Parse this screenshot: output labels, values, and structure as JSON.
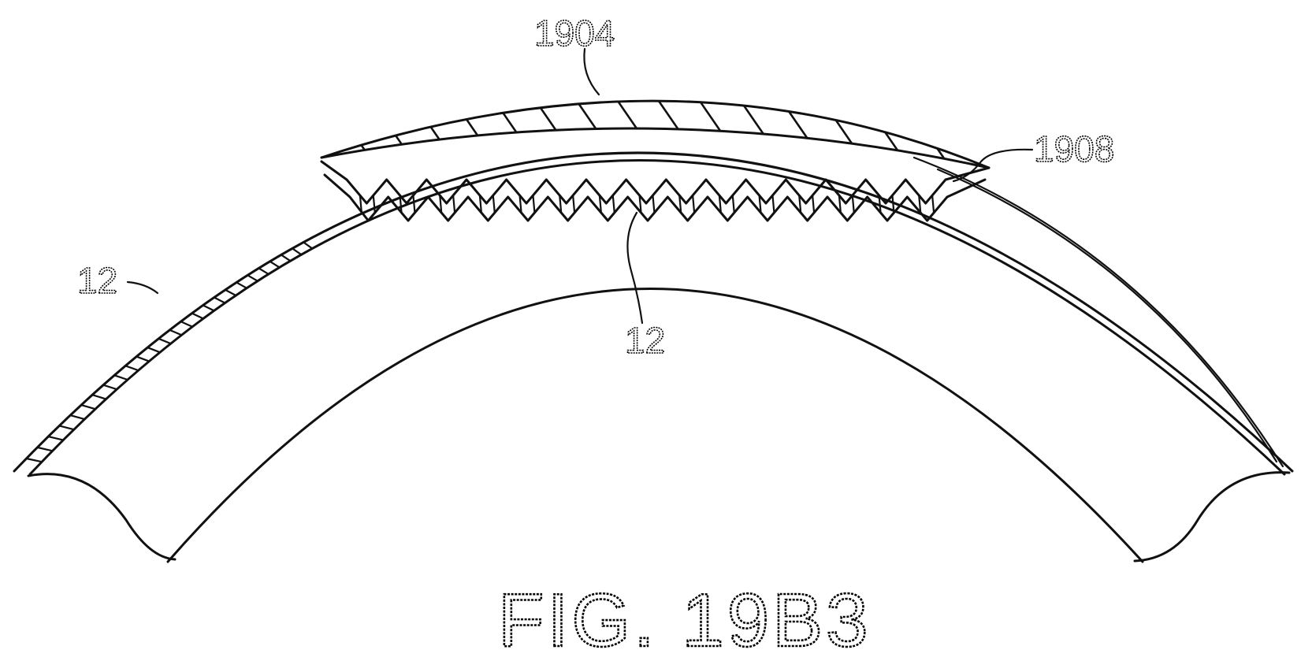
{
  "labels": {
    "ref_1904": "1904",
    "ref_1908": "1908",
    "ref_12_left": "12",
    "ref_12_center": "12"
  },
  "caption": "FIG. 19B3"
}
